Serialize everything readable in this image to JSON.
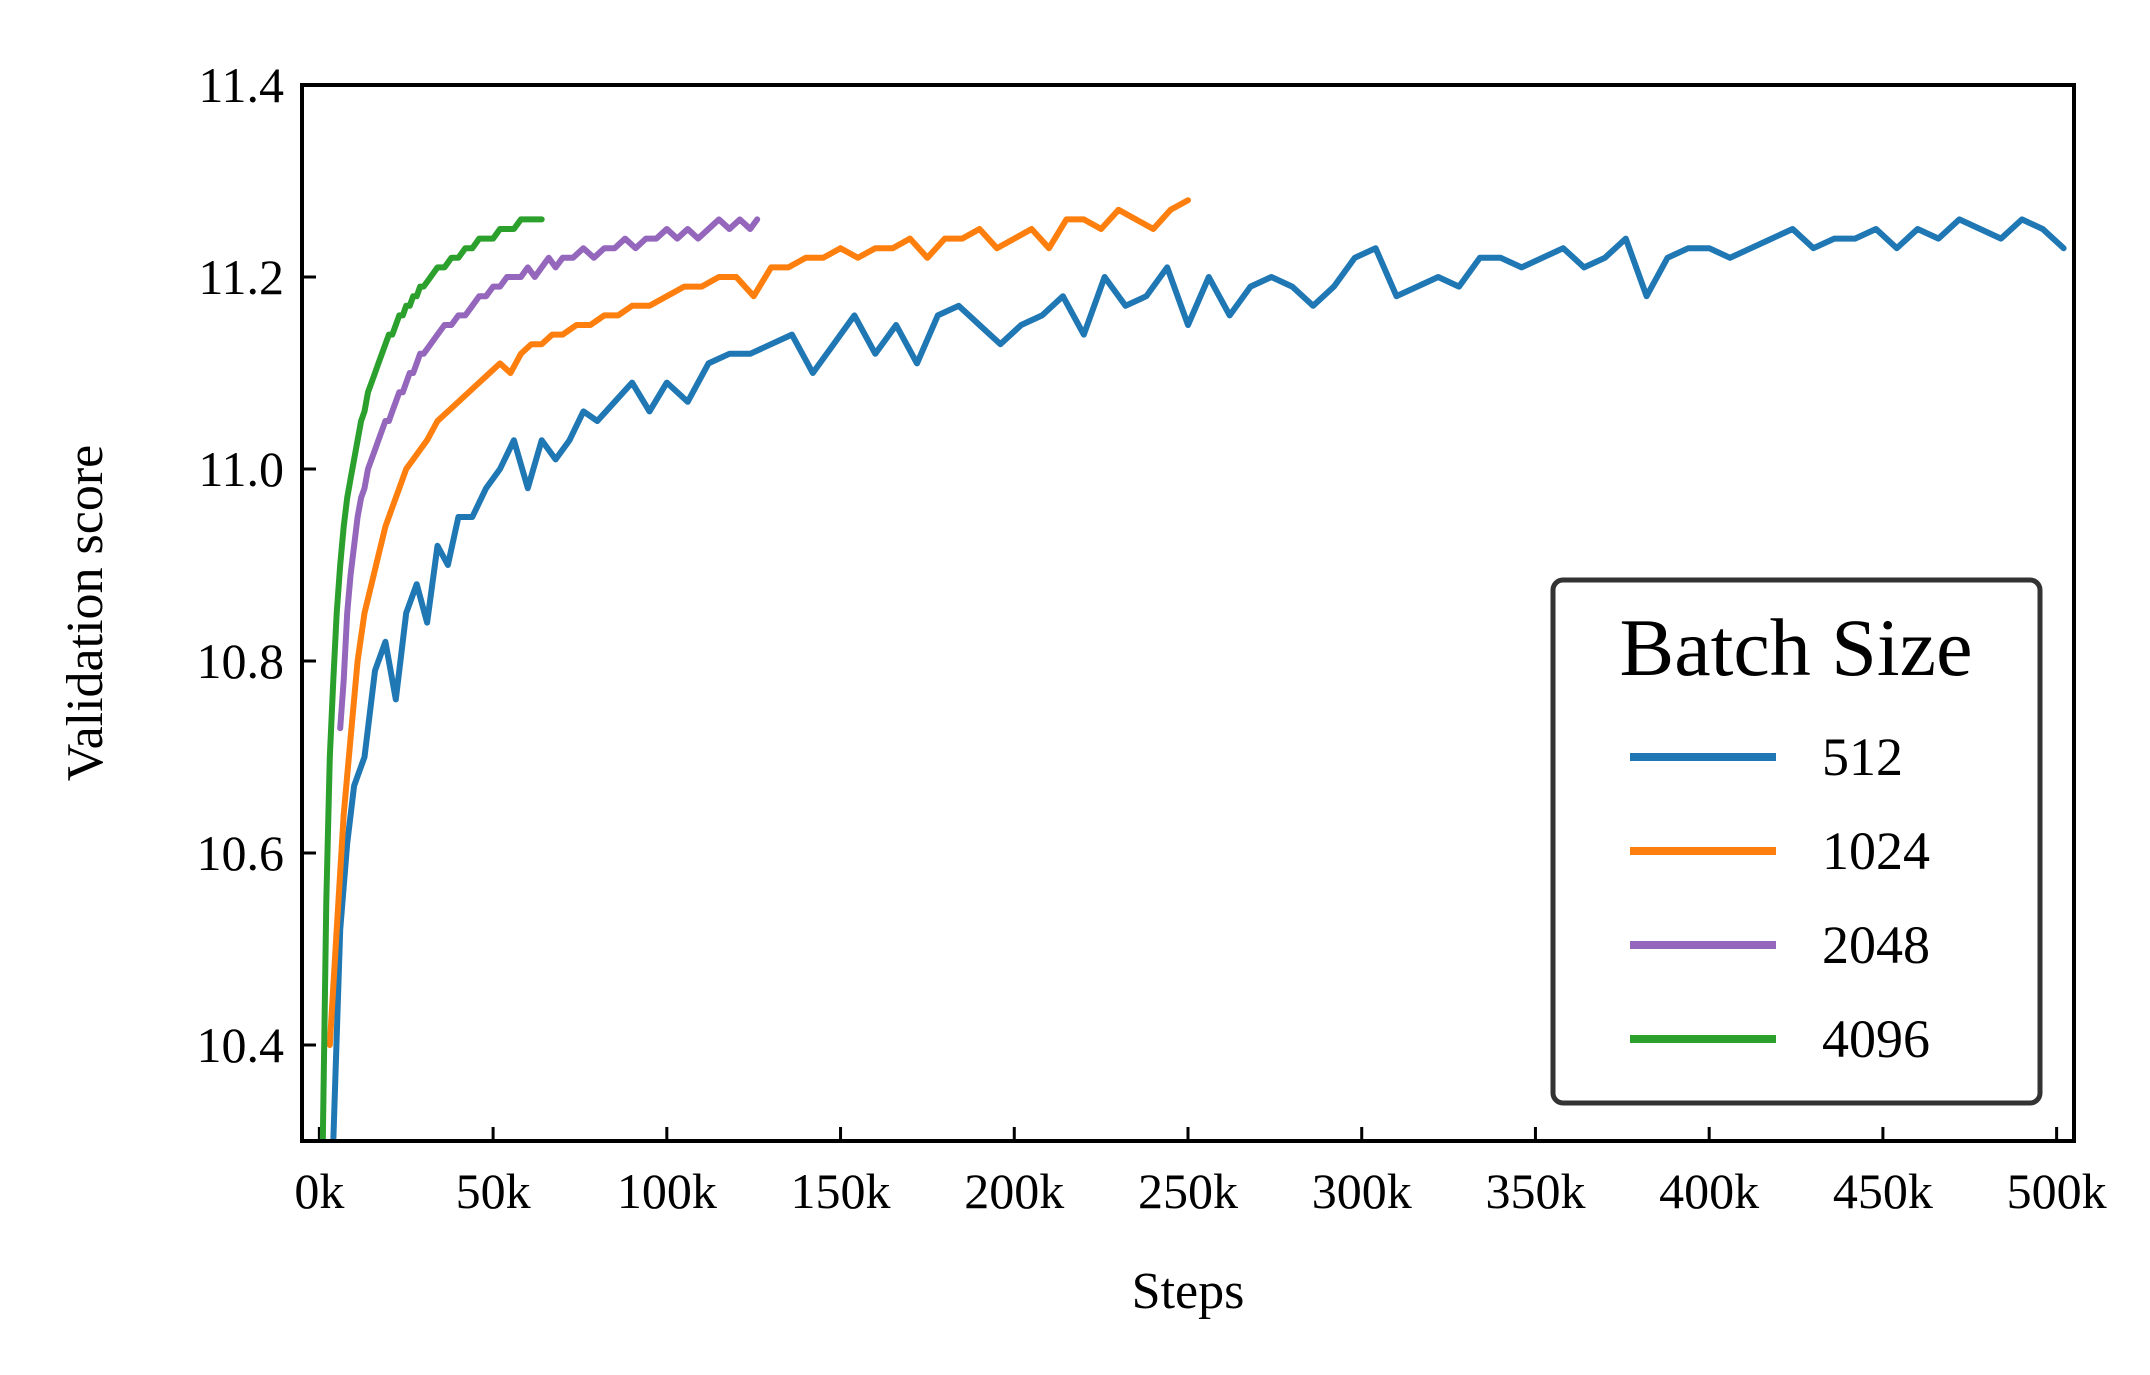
{
  "chart_data": {
    "type": "line",
    "title": "",
    "xlabel": "Steps",
    "ylabel": "Validation score",
    "xlim": [
      -5000,
      505000
    ],
    "ylim": [
      10.3,
      11.4
    ],
    "x_ticks": [
      0,
      50000,
      100000,
      150000,
      200000,
      250000,
      300000,
      350000,
      400000,
      450000,
      500000
    ],
    "x_tick_labels": [
      "0k",
      "50k",
      "100k",
      "150k",
      "200k",
      "250k",
      "300k",
      "350k",
      "400k",
      "450k",
      "500k"
    ],
    "y_ticks": [
      10.4,
      10.6,
      10.8,
      11.0,
      11.2,
      11.4
    ],
    "y_tick_labels": [
      "10.4",
      "10.6",
      "10.8",
      "11.0",
      "11.2",
      "11.4"
    ],
    "grid": false,
    "legend": {
      "title": "Batch Size",
      "position": "lower-right"
    },
    "series": [
      {
        "name": "512",
        "color": "#1f77b4",
        "x": [
          2000,
          4000,
          6000,
          8000,
          10000,
          13000,
          16000,
          19000,
          22000,
          25000,
          28000,
          31000,
          34000,
          37000,
          40000,
          44000,
          48000,
          52000,
          56000,
          60000,
          64000,
          68000,
          72000,
          76000,
          80000,
          85000,
          90000,
          95000,
          100000,
          106000,
          112000,
          118000,
          124000,
          130000,
          136000,
          142000,
          148000,
          154000,
          160000,
          166000,
          172000,
          178000,
          184000,
          190000,
          196000,
          202000,
          208000,
          214000,
          220000,
          226000,
          232000,
          238000,
          244000,
          250000,
          256000,
          262000,
          268000,
          274000,
          280000,
          286000,
          292000,
          298000,
          304000,
          310000,
          316000,
          322000,
          328000,
          334000,
          340000,
          346000,
          352000,
          358000,
          364000,
          370000,
          376000,
          382000,
          388000,
          394000,
          400000,
          406000,
          412000,
          418000,
          424000,
          430000,
          436000,
          442000,
          448000,
          454000,
          460000,
          466000,
          472000,
          478000,
          484000,
          490000,
          496000,
          502000
        ],
        "y": [
          10.2,
          10.3,
          10.52,
          10.61,
          10.67,
          10.7,
          10.79,
          10.82,
          10.76,
          10.85,
          10.88,
          10.84,
          10.92,
          10.9,
          10.95,
          10.95,
          10.98,
          11.0,
          11.03,
          10.98,
          11.03,
          11.01,
          11.03,
          11.06,
          11.05,
          11.07,
          11.09,
          11.06,
          11.09,
          11.07,
          11.11,
          11.12,
          11.12,
          11.13,
          11.14,
          11.1,
          11.13,
          11.16,
          11.12,
          11.15,
          11.11,
          11.16,
          11.17,
          11.15,
          11.13,
          11.15,
          11.16,
          11.18,
          11.14,
          11.2,
          11.17,
          11.18,
          11.21,
          11.15,
          11.2,
          11.16,
          11.19,
          11.2,
          11.19,
          11.17,
          11.19,
          11.22,
          11.23,
          11.18,
          11.19,
          11.2,
          11.19,
          11.22,
          11.22,
          11.21,
          11.22,
          11.23,
          11.21,
          11.22,
          11.24,
          11.18,
          11.22,
          11.23,
          11.23,
          11.22,
          11.23,
          11.24,
          11.25,
          11.23,
          11.24,
          11.24,
          11.25,
          11.23,
          11.25,
          11.24,
          11.26,
          11.25,
          11.24,
          11.26,
          11.25,
          11.23
        ]
      },
      {
        "name": "1024",
        "color": "#ff7f0e",
        "x": [
          3000,
          5000,
          7000,
          9000,
          11000,
          13000,
          15000,
          17000,
          19000,
          21000,
          23000,
          25000,
          27000,
          29000,
          31000,
          34000,
          37000,
          40000,
          43000,
          46000,
          49000,
          52000,
          55000,
          58000,
          61000,
          64000,
          67000,
          70000,
          74000,
          78000,
          82000,
          86000,
          90000,
          95000,
          100000,
          105000,
          110000,
          115000,
          120000,
          125000,
          130000,
          135000,
          140000,
          145000,
          150000,
          155000,
          160000,
          165000,
          170000,
          175000,
          180000,
          185000,
          190000,
          195000,
          200000,
          205000,
          210000,
          215000,
          220000,
          225000,
          230000,
          235000,
          240000,
          245000,
          250000
        ],
        "y": [
          10.4,
          10.52,
          10.64,
          10.72,
          10.8,
          10.85,
          10.88,
          10.91,
          10.94,
          10.96,
          10.98,
          11.0,
          11.01,
          11.02,
          11.03,
          11.05,
          11.06,
          11.07,
          11.08,
          11.09,
          11.1,
          11.11,
          11.1,
          11.12,
          11.13,
          11.13,
          11.14,
          11.14,
          11.15,
          11.15,
          11.16,
          11.16,
          11.17,
          11.17,
          11.18,
          11.19,
          11.19,
          11.2,
          11.2,
          11.18,
          11.21,
          11.21,
          11.22,
          11.22,
          11.23,
          11.22,
          11.23,
          11.23,
          11.24,
          11.22,
          11.24,
          11.24,
          11.25,
          11.23,
          11.24,
          11.25,
          11.23,
          11.26,
          11.26,
          11.25,
          11.27,
          11.26,
          11.25,
          11.27,
          11.28
        ]
      },
      {
        "name": "2048",
        "color": "#9467bd",
        "x": [
          6000,
          7000,
          8000,
          9000,
          10000,
          11000,
          12000,
          13000,
          14000,
          15000,
          16000,
          17000,
          18000,
          19000,
          20000,
          21000,
          22000,
          23000,
          24000,
          25000,
          26000,
          27000,
          28000,
          29000,
          30000,
          32000,
          34000,
          36000,
          38000,
          40000,
          42000,
          44000,
          46000,
          48000,
          50000,
          52000,
          54000,
          56000,
          58000,
          60000,
          62000,
          64000,
          66000,
          68000,
          70000,
          73000,
          76000,
          79000,
          82000,
          85000,
          88000,
          91000,
          94000,
          97000,
          100000,
          103000,
          106000,
          109000,
          112000,
          115000,
          118000,
          121000,
          124000,
          126000
        ],
        "y": [
          10.73,
          10.78,
          10.85,
          10.89,
          10.92,
          10.95,
          10.97,
          10.98,
          11.0,
          11.01,
          11.02,
          11.03,
          11.04,
          11.05,
          11.05,
          11.06,
          11.07,
          11.08,
          11.08,
          11.09,
          11.1,
          11.1,
          11.11,
          11.12,
          11.12,
          11.13,
          11.14,
          11.15,
          11.15,
          11.16,
          11.16,
          11.17,
          11.18,
          11.18,
          11.19,
          11.19,
          11.2,
          11.2,
          11.2,
          11.21,
          11.2,
          11.21,
          11.22,
          11.21,
          11.22,
          11.22,
          11.23,
          11.22,
          11.23,
          11.23,
          11.24,
          11.23,
          11.24,
          11.24,
          11.25,
          11.24,
          11.25,
          11.24,
          11.25,
          11.26,
          11.25,
          11.26,
          11.25,
          11.26
        ]
      },
      {
        "name": "4096",
        "color": "#2ca02c",
        "x": [
          1000,
          2000,
          3000,
          4000,
          5000,
          6000,
          7000,
          8000,
          9000,
          10000,
          11000,
          12000,
          13000,
          14000,
          15000,
          16000,
          17000,
          18000,
          19000,
          20000,
          21000,
          22000,
          23000,
          24000,
          25000,
          26000,
          27000,
          28000,
          29000,
          30000,
          32000,
          34000,
          36000,
          38000,
          40000,
          42000,
          44000,
          46000,
          48000,
          50000,
          52000,
          54000,
          56000,
          58000,
          60000,
          62000,
          64000
        ],
        "y": [
          10.3,
          10.55,
          10.7,
          10.78,
          10.85,
          10.9,
          10.94,
          10.97,
          10.99,
          11.01,
          11.03,
          11.05,
          11.06,
          11.08,
          11.09,
          11.1,
          11.11,
          11.12,
          11.13,
          11.14,
          11.14,
          11.15,
          11.16,
          11.16,
          11.17,
          11.17,
          11.18,
          11.18,
          11.19,
          11.19,
          11.2,
          11.21,
          11.21,
          11.22,
          11.22,
          11.23,
          11.23,
          11.24,
          11.24,
          11.24,
          11.25,
          11.25,
          11.25,
          11.26,
          11.26,
          11.26,
          11.26
        ]
      }
    ]
  }
}
